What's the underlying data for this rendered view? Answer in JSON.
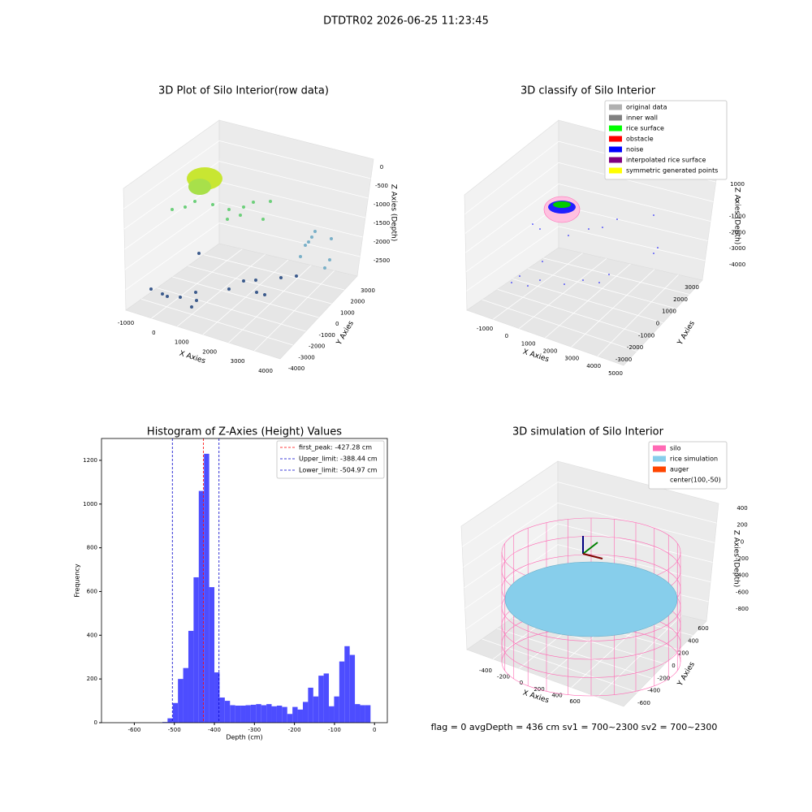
{
  "title": "DTDTR02 2026-06-25 11:23:45",
  "footer": "flag = 0     avgDepth = 436 cm  sv1 = 700~2300  sv2 = 700~2300",
  "chart_data": [
    {
      "type": "scatter3d",
      "title": "3D Plot of Silo Interior(row data)",
      "xlabel": "X Axies",
      "ylabel": "Y Axies",
      "zlabel": "Z Axies (Depth)",
      "xticks": [
        -1000,
        0,
        1000,
        2000,
        3000,
        4000
      ],
      "yticks": [
        -4000,
        -3000,
        -2000,
        -1000,
        0,
        1000,
        2000,
        3000
      ],
      "zticks": [
        0,
        -500,
        -1000,
        -1500,
        -2000,
        -2500
      ]
    },
    {
      "type": "scatter3d",
      "title": "3D classify of Silo Interior",
      "xlabel": "X Axies",
      "ylabel": "Y Axies",
      "zlabel": "Z Axies (Depth)",
      "xticks": [
        -1000,
        0,
        1000,
        2000,
        3000,
        4000,
        5000
      ],
      "yticks": [
        -3000,
        -2000,
        -1000,
        0,
        1000,
        2000,
        3000
      ],
      "zticks": [
        1000,
        0,
        -1000,
        -2000,
        -3000,
        -4000
      ],
      "legend": [
        {
          "name": "original data",
          "color": "#b0b0b0"
        },
        {
          "name": "inner wall",
          "color": "#808080"
        },
        {
          "name": "rice surface",
          "color": "#00ff00"
        },
        {
          "name": "obstacle",
          "color": "#ff0000"
        },
        {
          "name": "noise",
          "color": "#0000ff"
        },
        {
          "name": "interpolated rice surface",
          "color": "#800080"
        },
        {
          "name": "symmetric generated points",
          "color": "#ffff00"
        }
      ]
    },
    {
      "type": "histogram",
      "title": "Histogram of Z-Axies (Height) Values",
      "xlabel": "Depth (cm)",
      "ylabel": "Frequency",
      "color": "#4d4dff",
      "bins": [
        -530,
        -517,
        -504,
        -491,
        -478,
        -465,
        -452,
        -439,
        -426,
        -413,
        -400,
        -387,
        -374,
        -361,
        -348,
        -335,
        -322,
        -309,
        -296,
        -283,
        -270,
        -257,
        -244,
        -231,
        -218,
        -205,
        -192,
        -179,
        -166,
        -153,
        -140,
        -127,
        -114,
        -101,
        -88,
        -75,
        -62,
        -49,
        -36,
        -23,
        -10
      ],
      "values": [
        3,
        20,
        90,
        200,
        250,
        420,
        665,
        1060,
        1230,
        620,
        230,
        115,
        100,
        80,
        78,
        78,
        80,
        82,
        85,
        80,
        85,
        75,
        78,
        72,
        40,
        72,
        60,
        95,
        160,
        120,
        215,
        225,
        75,
        120,
        280,
        350,
        310,
        85,
        80,
        80
      ],
      "xlim": [
        -682,
        32
      ],
      "ylim": [
        0,
        1300
      ],
      "xticks": [
        -600,
        -500,
        -400,
        -300,
        -200,
        -100,
        0
      ],
      "yticks": [
        0,
        200,
        400,
        600,
        800,
        1000,
        1200
      ],
      "lines": [
        {
          "name": "first_peak: -427.28 cm",
          "value": -427.28,
          "color": "#ff0000"
        },
        {
          "name": "Upper_limit: -388.44 cm",
          "value": -388.44,
          "color": "#0000cc"
        },
        {
          "name": "Lower_limit: -504.97 cm",
          "value": -504.97,
          "color": "#0000cc"
        }
      ]
    },
    {
      "type": "surface3d",
      "title": "3D simulation of Silo Interior",
      "xlabel": "X Axies",
      "ylabel": "Y Axies",
      "zlabel": "Z Axies (Depth)",
      "xticks": [
        -400,
        -200,
        0,
        200,
        400,
        600
      ],
      "yticks": [
        -600,
        -400,
        -200,
        0,
        200,
        400,
        600
      ],
      "zticks": [
        400,
        200,
        0,
        -200,
        -400,
        -600,
        -800
      ],
      "legend": [
        {
          "name": "silo",
          "color": "#ff69b4"
        },
        {
          "name": "rice simulation",
          "color": "#87ceeb"
        },
        {
          "name": "auger",
          "color": "#ff4500"
        },
        {
          "name": "center(100,-50)",
          "color": null
        }
      ]
    }
  ]
}
